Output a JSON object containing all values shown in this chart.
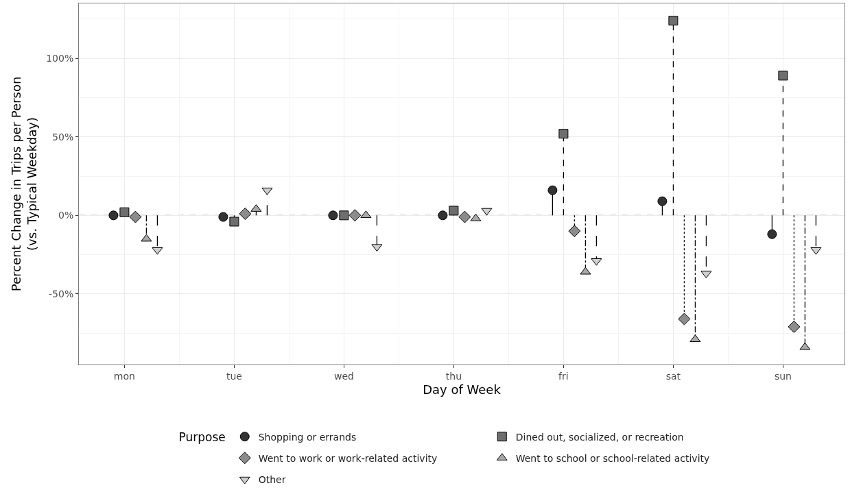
{
  "chart_data": {
    "type": "lollipop",
    "xlabel": "Day of Week",
    "ylabel": "Percent Change in Trips per Person\n(vs. Typical Weekday)",
    "legend_title": "Purpose",
    "categories": [
      "mon",
      "tue",
      "wed",
      "thu",
      "fri",
      "sat",
      "sun"
    ],
    "series": [
      {
        "name": "Shopping or errands",
        "color": "#333333",
        "marker": "circle",
        "line_style": "solid",
        "values": [
          0,
          -1,
          0,
          0,
          16,
          9,
          -12
        ]
      },
      {
        "name": "Dined out, socialized, or recreation",
        "color": "#6e6e6e",
        "marker": "square",
        "line_style": "dashed",
        "values": [
          2,
          -4,
          0,
          3,
          52,
          124,
          89
        ]
      },
      {
        "name": "Went to work or work-related activity",
        "color": "#8c8c8c",
        "marker": "diamond",
        "line_style": "dotted",
        "values": [
          -1,
          1,
          0,
          -1,
          -10,
          -66,
          -71
        ]
      },
      {
        "name": "Went to school or school-related activity",
        "color": "#a9a9a9",
        "marker": "triangle",
        "line_style": "dashdot",
        "values": [
          -15,
          4,
          0,
          -2,
          -36,
          -79,
          -84
        ]
      },
      {
        "name": "Other",
        "color": "#cfcfcf",
        "marker": "triangle-down",
        "line_style": "longdash",
        "values": [
          -22,
          16,
          -20,
          3,
          -29,
          -37,
          -22
        ]
      }
    ],
    "ylim": [
      -95,
      135
    ],
    "yticks": [
      {
        "value": -50,
        "label": "-50%"
      },
      {
        "value": 0,
        "label": "0%"
      },
      {
        "value": 50,
        "label": "50%"
      },
      {
        "value": 100,
        "label": "100%"
      }
    ],
    "ref_lines": [
      {
        "axis": "y",
        "value": 0,
        "color": "#808080",
        "line_style": "dashed"
      }
    ],
    "grid": true,
    "legend": "bottom"
  }
}
